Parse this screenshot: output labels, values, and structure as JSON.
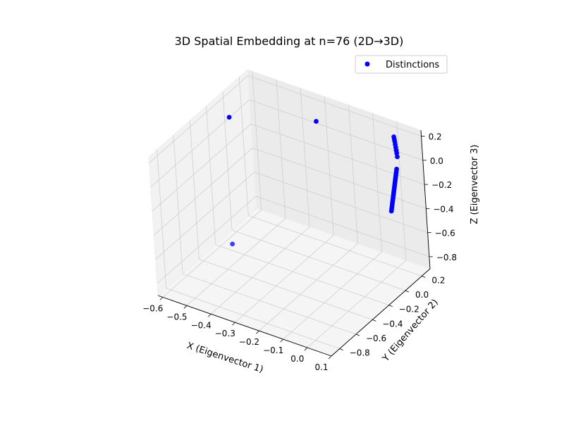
{
  "chart_data": {
    "type": "scatter3d",
    "title": "3D Spatial Embedding at n=76 (2D→3D)",
    "xlabel": "X (Eigenvector 1)",
    "ylabel": "Y (Eigenvector 2)",
    "zlabel": "Z (Eigenvector 3)",
    "xlim": [
      -0.62,
      0.1
    ],
    "ylim": [
      -0.9,
      0.3
    ],
    "zlim": [
      -0.9,
      0.25
    ],
    "xticks": [
      "−0.6",
      "−0.5",
      "−0.4",
      "−0.3",
      "−0.2",
      "−0.1",
      "0.0",
      "0.1"
    ],
    "yticks": [
      "−0.8",
      "−0.6",
      "−0.4",
      "−0.2",
      "0.0",
      "0.2"
    ],
    "zticks": [
      "−0.8",
      "−0.6",
      "−0.4",
      "−0.2",
      "0.0",
      "0.2"
    ],
    "grid": true,
    "legend_position": "top-right",
    "series": [
      {
        "name": "Distinctions",
        "color": "#0000ff",
        "points": [
          {
            "x": -0.6,
            "y": 0.0,
            "z": 0.05
          },
          {
            "x": -0.25,
            "y": 0.05,
            "z": 0.23
          },
          {
            "x": -0.4,
            "y": -0.6,
            "z": -0.5
          },
          {
            "x": 0.02,
            "y": 0.2,
            "z": 0.2
          },
          {
            "x": 0.025,
            "y": 0.19,
            "z": 0.19
          },
          {
            "x": 0.03,
            "y": 0.18,
            "z": 0.18
          },
          {
            "x": 0.035,
            "y": 0.17,
            "z": 0.165
          },
          {
            "x": 0.04,
            "y": 0.16,
            "z": 0.15
          },
          {
            "x": 0.045,
            "y": 0.15,
            "z": 0.135
          },
          {
            "x": 0.05,
            "y": 0.14,
            "z": 0.12
          },
          {
            "x": 0.055,
            "y": 0.13,
            "z": 0.1
          },
          {
            "x": 0.06,
            "y": 0.1,
            "z": 0.02
          },
          {
            "x": 0.062,
            "y": 0.09,
            "z": 0.01
          },
          {
            "x": 0.064,
            "y": 0.08,
            "z": 0.0
          },
          {
            "x": 0.066,
            "y": 0.07,
            "z": -0.01
          },
          {
            "x": 0.068,
            "y": 0.06,
            "z": -0.02
          },
          {
            "x": 0.07,
            "y": 0.05,
            "z": -0.03
          },
          {
            "x": 0.072,
            "y": 0.04,
            "z": -0.04
          },
          {
            "x": 0.074,
            "y": 0.03,
            "z": -0.05
          },
          {
            "x": 0.076,
            "y": 0.02,
            "z": -0.06
          },
          {
            "x": 0.078,
            "y": 0.01,
            "z": -0.07
          },
          {
            "x": 0.08,
            "y": 0.0,
            "z": -0.08
          },
          {
            "x": 0.082,
            "y": -0.01,
            "z": -0.09
          },
          {
            "x": 0.084,
            "y": -0.02,
            "z": -0.1
          },
          {
            "x": 0.086,
            "y": -0.03,
            "z": -0.11
          },
          {
            "x": 0.088,
            "y": -0.04,
            "z": -0.12
          },
          {
            "x": 0.09,
            "y": -0.05,
            "z": -0.13
          },
          {
            "x": 0.092,
            "y": -0.06,
            "z": -0.14
          },
          {
            "x": 0.094,
            "y": -0.07,
            "z": -0.15
          },
          {
            "x": 0.096,
            "y": -0.08,
            "z": -0.16
          },
          {
            "x": 0.098,
            "y": -0.09,
            "z": -0.17
          },
          {
            "x": 0.1,
            "y": -0.1,
            "z": -0.18
          }
        ]
      }
    ]
  }
}
